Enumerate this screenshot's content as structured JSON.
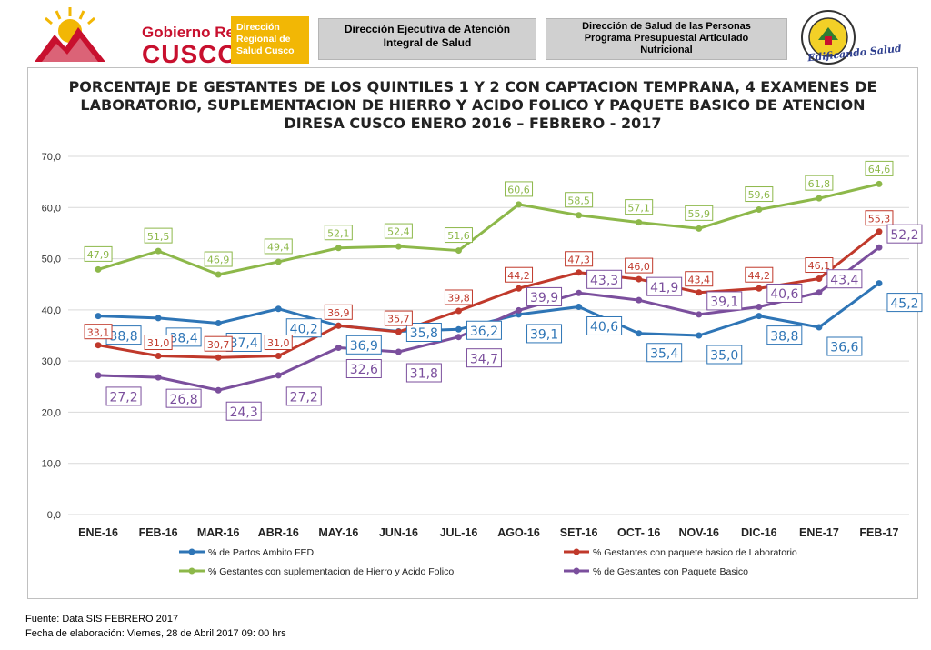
{
  "header": {
    "logo": {
      "name_top": "Gobierno Regional",
      "name_main": "CUSCO",
      "badge_lines": [
        "Dirección",
        "Regional de",
        "Salud Cusco"
      ]
    },
    "box1_lines": [
      "Dirección Ejecutiva de Atención",
      "Integral de Salud"
    ],
    "box2_lines": [
      "Dirección de Salud de las Personas",
      "Programa Presupuestal Articulado",
      "Nutricional"
    ],
    "seal_motto": "Edificando Salud"
  },
  "chart_data": {
    "type": "line",
    "title_lines": [
      "PORCENTAJE  DE GESTANTES DE LOS QUINTILES 1 Y 2 CON CAPTACION TEMPRANA, 4 EXAMENES DE",
      "LABORATORIO, SUPLEMENTACION DE HIERRO Y ACIDO FOLICO Y PAQUETE   BASICO DE ATENCION",
      "DIRESA CUSCO ENERO 2016 – FEBRERO - 2017"
    ],
    "categories": [
      "ENE-16",
      "FEB-16",
      "MAR-16",
      "ABR-16",
      "MAY-16",
      "JUN-16",
      "JUL-16",
      "AGO-16",
      "SET-16",
      "OCT- 16",
      "NOV-16",
      "DIC-16",
      "ENE-17",
      "FEB-17"
    ],
    "ylim": [
      0,
      70
    ],
    "yticks": [
      0,
      10,
      20,
      30,
      40,
      50,
      60,
      70
    ],
    "ytick_labels": [
      "0,0",
      "10,0",
      "20,0",
      "30,0",
      "40,0",
      "50,0",
      "60,0",
      "70,0"
    ],
    "grid": true,
    "legend_position": "bottom",
    "series": [
      {
        "name": "% de Partos Ambito FED",
        "color": "#2e75b6",
        "values": [
          38.8,
          38.4,
          37.4,
          40.2,
          36.9,
          35.8,
          36.2,
          39.1,
          40.6,
          35.4,
          35.0,
          38.8,
          36.6,
          45.2
        ],
        "labels": [
          "38,8",
          "38,4",
          "37,4",
          "40,2",
          "36,9",
          "35,8",
          "36,2",
          "39,1",
          "40,6",
          "35,4",
          "35,0",
          "38,8",
          "36,6",
          "45,2"
        ]
      },
      {
        "name": "% Gestantes con paquete basico de Laboratorio",
        "color": "#c0392b",
        "values": [
          33.1,
          31.0,
          30.7,
          31.0,
          36.9,
          35.7,
          39.8,
          44.2,
          47.3,
          46.0,
          43.4,
          44.2,
          46.1,
          55.3
        ],
        "labels": [
          "33,1",
          "31,0",
          "30,7",
          "31,0",
          "36,9",
          "35,7",
          "39,8",
          "44,2",
          "47,3",
          "46,0",
          "43,4",
          "44,2",
          "46,1",
          "55,3"
        ]
      },
      {
        "name": "% Gestantes con suplementacion de Hierro y Acido Folico",
        "color": "#8db84a",
        "values": [
          47.9,
          51.5,
          46.9,
          49.4,
          52.1,
          52.4,
          51.6,
          60.6,
          58.5,
          57.1,
          55.9,
          59.6,
          61.8,
          64.6
        ],
        "labels": [
          "47,9",
          "51,5",
          "46,9",
          "49,4",
          "52,1",
          "52,4",
          "51,6",
          "60,6",
          "58,5",
          "57,1",
          "55,9",
          "59,6",
          "61,8",
          "64,6"
        ]
      },
      {
        "name": "% de Gestantes con Paquete Basico",
        "color": "#7b4f9d",
        "values": [
          27.2,
          26.8,
          24.3,
          27.2,
          32.6,
          31.8,
          34.7,
          39.9,
          43.3,
          41.9,
          39.1,
          40.6,
          43.4,
          52.2
        ],
        "labels": [
          "27,2",
          "26,8",
          "24,3",
          "27,2",
          "32,6",
          "31,8",
          "34,7",
          "39,9",
          "43,3",
          "41,9",
          "39,1",
          "40,6",
          "43,4",
          "52,2"
        ]
      }
    ]
  },
  "footer": {
    "source": "Fuente: Data SIS   FEBRERO 2017",
    "date": "Fecha de elaboración: Viernes, 28 de  Abril  2017 09: 00 hrs"
  }
}
